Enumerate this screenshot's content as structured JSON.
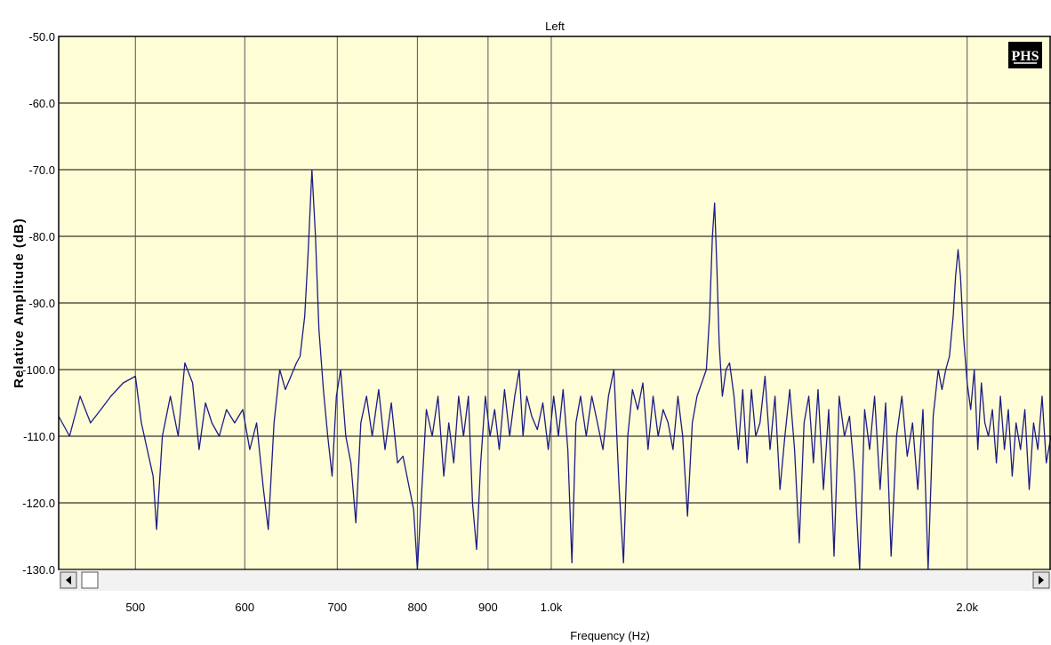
{
  "chart_data": {
    "type": "line",
    "title": "Left",
    "xlabel": "Frequency (Hz)",
    "ylabel": "Relative Amplitude (dB)",
    "x_scale": "log",
    "xlim": [
      440,
      2300
    ],
    "ylim": [
      -130,
      -50
    ],
    "grid": true,
    "x_ticks": [
      500,
      600,
      700,
      800,
      900,
      1000,
      2000
    ],
    "x_tick_labels": [
      "500",
      "600",
      "700",
      "800",
      "900",
      "1.0k",
      "2.0k"
    ],
    "y_ticks": [
      -50,
      -60,
      -70,
      -80,
      -90,
      -100,
      -110,
      -120,
      -130
    ],
    "y_tick_labels": [
      "-50.0",
      "-60.0",
      "-70.0",
      "-80.0",
      "-90.0",
      "-100.0",
      "-110.0",
      "-120.0",
      "-130.0"
    ],
    "badge": "PHS",
    "colors": {
      "plot_bg": "#fffdd6",
      "line": "#1c1c86",
      "grid": "#000000",
      "badge_bg": "#000000"
    },
    "series": [
      {
        "points": [
          [
            440,
            -107
          ],
          [
            448,
            -110
          ],
          [
            456,
            -104
          ],
          [
            464,
            -108
          ],
          [
            472,
            -106
          ],
          [
            480,
            -104
          ],
          [
            490,
            -102
          ],
          [
            500,
            -101
          ],
          [
            505,
            -108
          ],
          [
            510,
            -112
          ],
          [
            515,
            -116
          ],
          [
            518,
            -124
          ],
          [
            523,
            -110
          ],
          [
            530,
            -104
          ],
          [
            537,
            -110
          ],
          [
            543,
            -99
          ],
          [
            550,
            -102
          ],
          [
            556,
            -112
          ],
          [
            562,
            -105
          ],
          [
            568,
            -108
          ],
          [
            575,
            -110
          ],
          [
            582,
            -106
          ],
          [
            590,
            -108
          ],
          [
            598,
            -106
          ],
          [
            605,
            -112
          ],
          [
            612,
            -108
          ],
          [
            619,
            -118
          ],
          [
            624,
            -124
          ],
          [
            630,
            -108
          ],
          [
            636,
            -100
          ],
          [
            642,
            -103
          ],
          [
            648,
            -101
          ],
          [
            654,
            -99
          ],
          [
            658,
            -98
          ],
          [
            663,
            -92
          ],
          [
            667,
            -82
          ],
          [
            671,
            -70
          ],
          [
            675,
            -80
          ],
          [
            679,
            -94
          ],
          [
            684,
            -103
          ],
          [
            689,
            -110
          ],
          [
            694,
            -116
          ],
          [
            699,
            -104
          ],
          [
            704,
            -100
          ],
          [
            710,
            -110
          ],
          [
            716,
            -114
          ],
          [
            722,
            -123
          ],
          [
            728,
            -108
          ],
          [
            735,
            -104
          ],
          [
            742,
            -110
          ],
          [
            750,
            -103
          ],
          [
            758,
            -112
          ],
          [
            766,
            -105
          ],
          [
            774,
            -114
          ],
          [
            781,
            -113
          ],
          [
            788,
            -117
          ],
          [
            795,
            -121
          ],
          [
            800,
            -130
          ],
          [
            806,
            -118
          ],
          [
            812,
            -106
          ],
          [
            820,
            -110
          ],
          [
            828,
            -104
          ],
          [
            836,
            -116
          ],
          [
            843,
            -108
          ],
          [
            850,
            -114
          ],
          [
            857,
            -104
          ],
          [
            864,
            -110
          ],
          [
            871,
            -104
          ],
          [
            877,
            -120
          ],
          [
            883,
            -127
          ],
          [
            889,
            -114
          ],
          [
            896,
            -104
          ],
          [
            903,
            -110
          ],
          [
            910,
            -106
          ],
          [
            917,
            -112
          ],
          [
            925,
            -103
          ],
          [
            933,
            -110
          ],
          [
            941,
            -104
          ],
          [
            948,
            -100
          ],
          [
            954,
            -110
          ],
          [
            960,
            -104
          ],
          [
            968,
            -107
          ],
          [
            977,
            -109
          ],
          [
            986,
            -105
          ],
          [
            995,
            -112
          ],
          [
            1004,
            -104
          ],
          [
            1012,
            -110
          ],
          [
            1020,
            -103
          ],
          [
            1028,
            -112
          ],
          [
            1035,
            -129
          ],
          [
            1042,
            -108
          ],
          [
            1050,
            -104
          ],
          [
            1060,
            -110
          ],
          [
            1070,
            -104
          ],
          [
            1080,
            -108
          ],
          [
            1090,
            -112
          ],
          [
            1100,
            -104
          ],
          [
            1110,
            -100
          ],
          [
            1120,
            -118
          ],
          [
            1128,
            -129
          ],
          [
            1136,
            -110
          ],
          [
            1145,
            -103
          ],
          [
            1155,
            -106
          ],
          [
            1165,
            -102
          ],
          [
            1175,
            -112
          ],
          [
            1185,
            -104
          ],
          [
            1195,
            -110
          ],
          [
            1205,
            -106
          ],
          [
            1215,
            -108
          ],
          [
            1225,
            -112
          ],
          [
            1235,
            -104
          ],
          [
            1245,
            -110
          ],
          [
            1255,
            -122
          ],
          [
            1265,
            -108
          ],
          [
            1275,
            -104
          ],
          [
            1285,
            -102
          ],
          [
            1295,
            -100
          ],
          [
            1302,
            -92
          ],
          [
            1308,
            -80
          ],
          [
            1313,
            -75
          ],
          [
            1318,
            -85
          ],
          [
            1323,
            -96
          ],
          [
            1330,
            -104
          ],
          [
            1338,
            -100
          ],
          [
            1346,
            -99
          ],
          [
            1356,
            -104
          ],
          [
            1366,
            -112
          ],
          [
            1376,
            -103
          ],
          [
            1386,
            -114
          ],
          [
            1396,
            -103
          ],
          [
            1406,
            -110
          ],
          [
            1416,
            -108
          ],
          [
            1428,
            -101
          ],
          [
            1440,
            -112
          ],
          [
            1452,
            -104
          ],
          [
            1464,
            -118
          ],
          [
            1476,
            -110
          ],
          [
            1488,
            -103
          ],
          [
            1500,
            -112
          ],
          [
            1512,
            -126
          ],
          [
            1524,
            -108
          ],
          [
            1536,
            -104
          ],
          [
            1548,
            -114
          ],
          [
            1560,
            -103
          ],
          [
            1574,
            -118
          ],
          [
            1588,
            -106
          ],
          [
            1602,
            -128
          ],
          [
            1616,
            -104
          ],
          [
            1630,
            -110
          ],
          [
            1644,
            -107
          ],
          [
            1658,
            -116
          ],
          [
            1672,
            -130
          ],
          [
            1686,
            -106
          ],
          [
            1700,
            -112
          ],
          [
            1714,
            -104
          ],
          [
            1730,
            -118
          ],
          [
            1746,
            -105
          ],
          [
            1762,
            -128
          ],
          [
            1778,
            -110
          ],
          [
            1794,
            -104
          ],
          [
            1810,
            -113
          ],
          [
            1826,
            -108
          ],
          [
            1842,
            -118
          ],
          [
            1858,
            -106
          ],
          [
            1874,
            -130
          ],
          [
            1890,
            -107
          ],
          [
            1906,
            -100
          ],
          [
            1918,
            -103
          ],
          [
            1930,
            -100
          ],
          [
            1942,
            -98
          ],
          [
            1954,
            -92
          ],
          [
            1962,
            -86
          ],
          [
            1970,
            -82
          ],
          [
            1978,
            -86
          ],
          [
            1988,
            -95
          ],
          [
            2000,
            -102
          ],
          [
            2012,
            -106
          ],
          [
            2024,
            -100
          ],
          [
            2036,
            -112
          ],
          [
            2048,
            -102
          ],
          [
            2060,
            -108
          ],
          [
            2072,
            -110
          ],
          [
            2086,
            -106
          ],
          [
            2100,
            -114
          ],
          [
            2114,
            -104
          ],
          [
            2128,
            -112
          ],
          [
            2142,
            -106
          ],
          [
            2156,
            -116
          ],
          [
            2170,
            -108
          ],
          [
            2186,
            -112
          ],
          [
            2202,
            -106
          ],
          [
            2218,
            -118
          ],
          [
            2234,
            -108
          ],
          [
            2250,
            -112
          ],
          [
            2266,
            -104
          ],
          [
            2282,
            -114
          ],
          [
            2300,
            -110
          ]
        ]
      }
    ]
  }
}
